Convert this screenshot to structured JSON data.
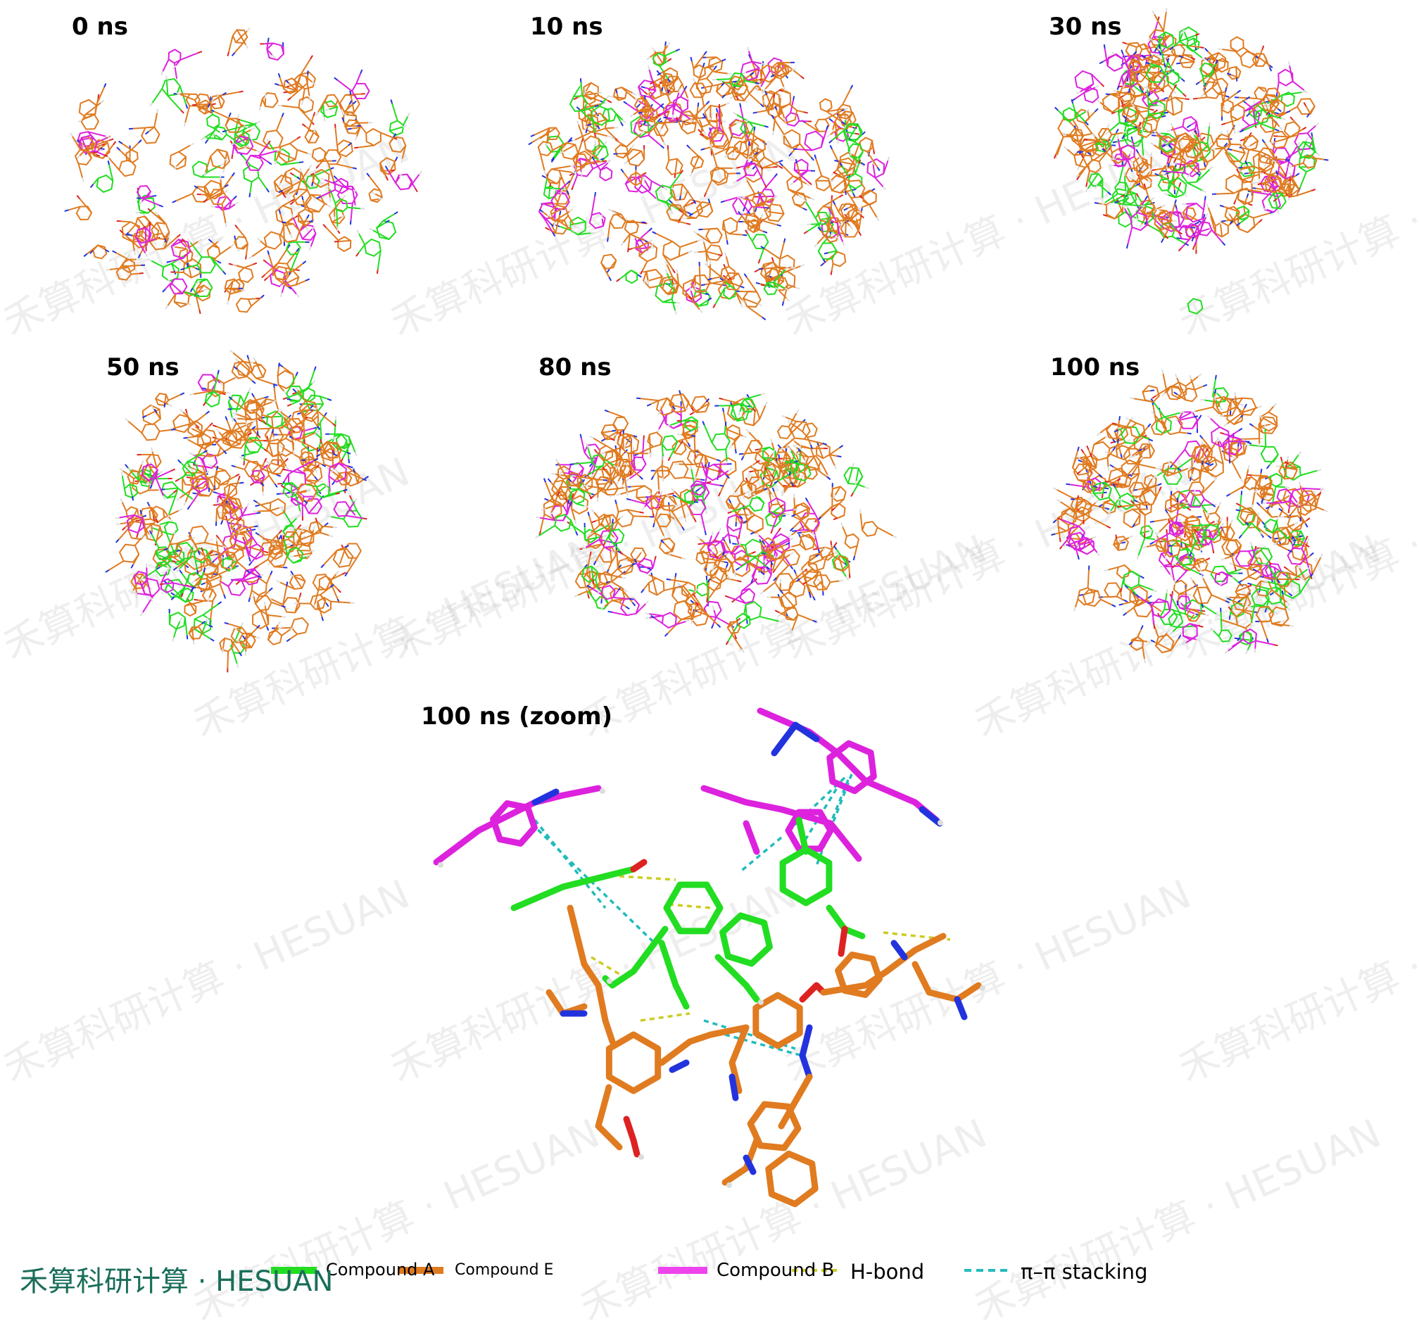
{
  "panels": [
    {
      "label": "0 ns"
    },
    {
      "label": "10 ns"
    },
    {
      "label": "30 ns"
    },
    {
      "label": "50 ns"
    },
    {
      "label": "80 ns"
    },
    {
      "label": "100 ns"
    },
    {
      "label": "100 ns (zoom)"
    }
  ],
  "legend": {
    "compound_a": "Compound A",
    "compound_e": "Compound E",
    "compound_b": "Compound B",
    "hbond": "H-bond",
    "pi_stacking": "π–π stacking"
  },
  "brand": "禾算科研计算 · HESUAN",
  "watermark": "禾算科研计算 · HESUAN",
  "colors": {
    "compound_a": "#22dd22",
    "compound_e": "#e07b20",
    "compound_b": "#dd22dd",
    "nitrogen": "#2233dd",
    "oxygen": "#dd2222",
    "hydrogen": "#dddddd",
    "hbond": "#cccc22",
    "pi_stacking": "#22bbbb",
    "brand": "#1a6e5a"
  }
}
